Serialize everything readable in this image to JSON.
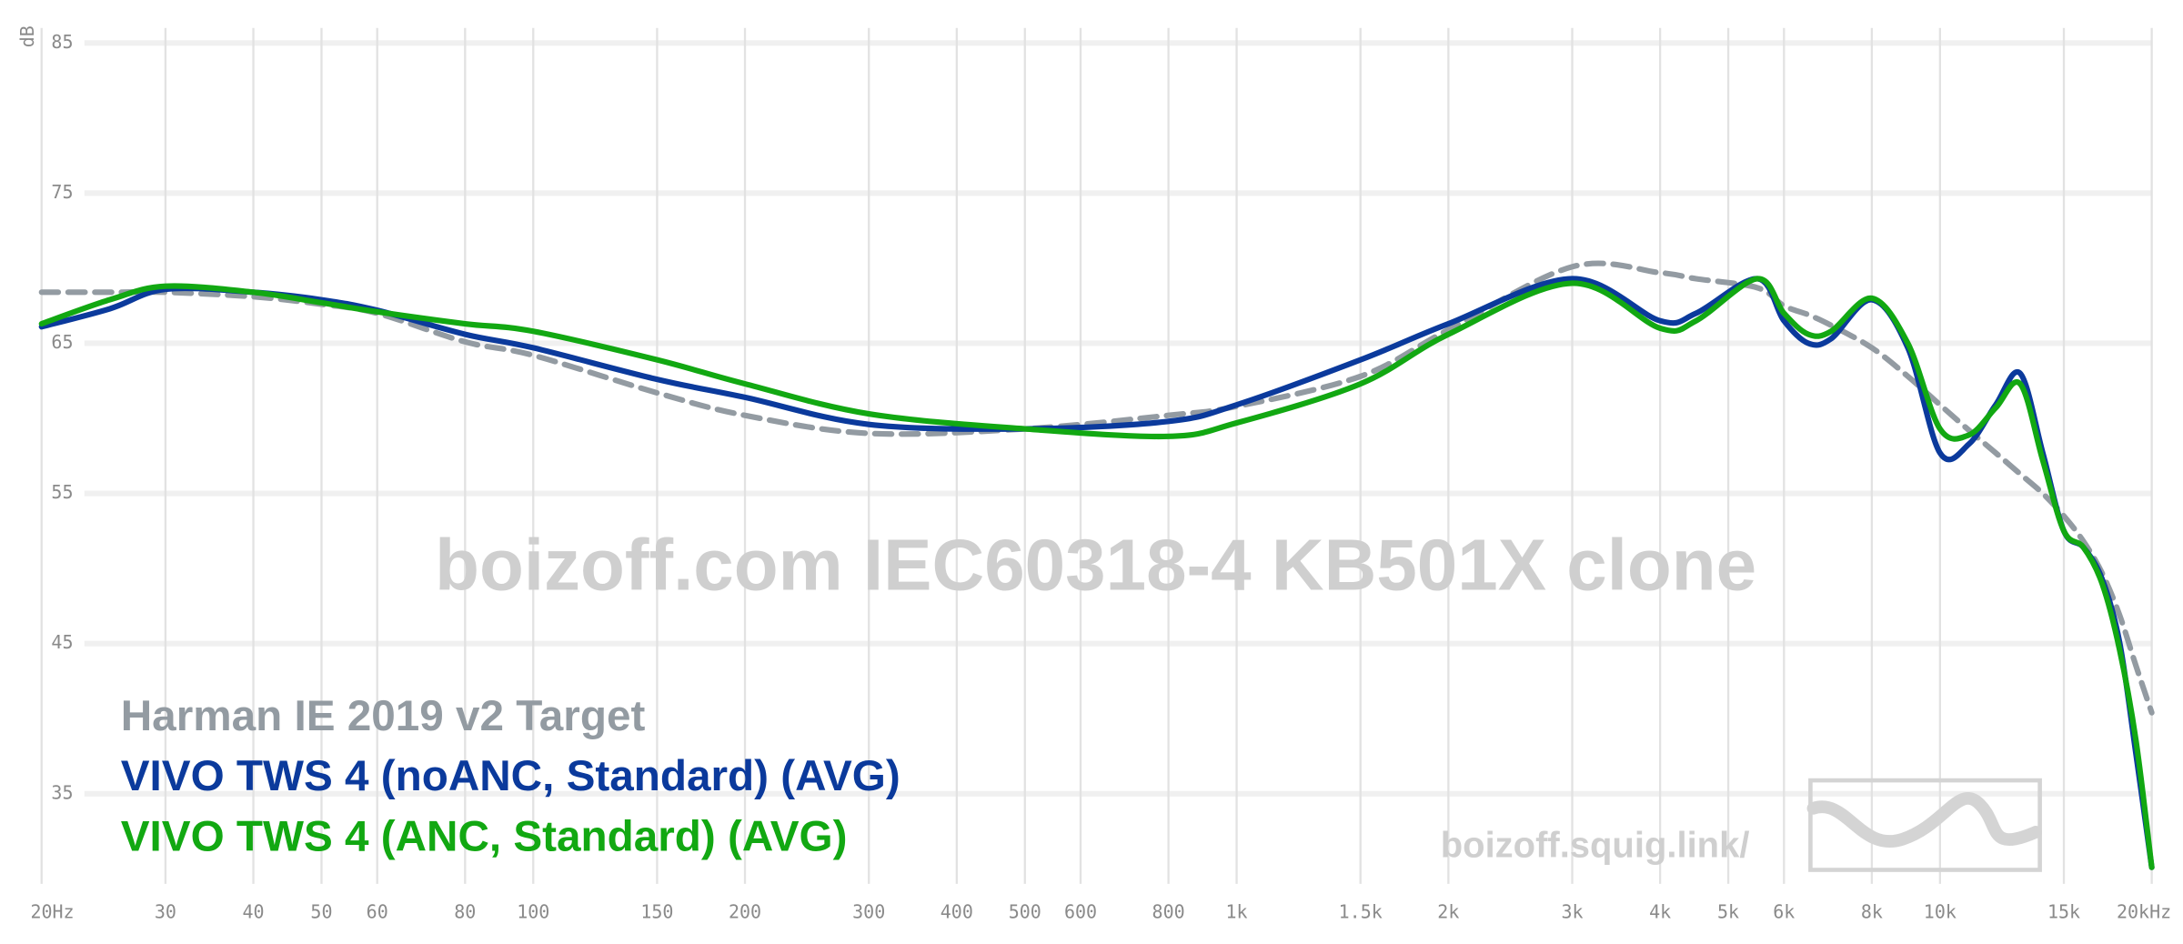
{
  "chart_data": {
    "type": "line",
    "title": "boizoff.com IEC60318-4 KB501X clone",
    "annotations": [
      "boizoff.squig.link/"
    ],
    "y_label": "dB",
    "x_scale": "log",
    "grid": true,
    "legend": "bottom-left",
    "xlim": [
      20,
      20000
    ],
    "ylim": [
      29,
      86
    ],
    "yticks": [
      35,
      45,
      55,
      65,
      75,
      85
    ],
    "xticks": [
      {
        "value": 20,
        "label": "20Hz"
      },
      30,
      40,
      50,
      60,
      80,
      100,
      150,
      200,
      300,
      400,
      500,
      600,
      800,
      {
        "value": 1000,
        "label": "1k"
      },
      {
        "value": 1500,
        "label": "1.5k"
      },
      {
        "value": 2000,
        "label": "2k"
      },
      {
        "value": 3000,
        "label": "3k"
      },
      {
        "value": 4000,
        "label": "4k"
      },
      {
        "value": 5000,
        "label": "5k"
      },
      {
        "value": 6000,
        "label": "6k"
      },
      {
        "value": 8000,
        "label": "8k"
      },
      {
        "value": 10000,
        "label": "10k"
      },
      {
        "value": 15000,
        "label": "15k"
      },
      {
        "value": 20000,
        "label": "20kHz"
      }
    ],
    "x": [
      20,
      25,
      30,
      40,
      50,
      60,
      80,
      100,
      150,
      200,
      300,
      500,
      800,
      1000,
      1500,
      2000,
      3000,
      4000,
      4500,
      5500,
      6000,
      6500,
      7000,
      8000,
      9000,
      10000,
      11000,
      12000,
      13000,
      14000,
      15000,
      16000,
      17000,
      18000,
      19000,
      20000
    ],
    "series": [
      {
        "name": "Harman IE 2019 v2 Target",
        "color": "#939ba2",
        "dash": true,
        "values": [
          68.4,
          68.4,
          68.4,
          68.1,
          67.6,
          67.0,
          65.1,
          64.2,
          61.7,
          60.2,
          59.0,
          59.3,
          60.2,
          60.8,
          62.8,
          65.9,
          70.1,
          69.7,
          69.3,
          68.7,
          67.5,
          66.9,
          66.2,
          64.7,
          62.8,
          60.9,
          59.2,
          57.7,
          56.3,
          55.0,
          53.5,
          51.8,
          49.7,
          46.9,
          43.5,
          40.4
        ]
      },
      {
        "name": "VIVO TWS 4 (noANC, Standard) (AVG)",
        "color": "#0b3a9c",
        "values": [
          66.1,
          67.3,
          68.6,
          68.4,
          67.9,
          67.2,
          65.6,
          64.7,
          62.6,
          61.4,
          59.6,
          59.3,
          59.8,
          60.9,
          63.9,
          66.3,
          69.3,
          66.5,
          67.0,
          69.3,
          66.5,
          65.0,
          65.3,
          67.9,
          64.7,
          57.7,
          58.3,
          60.9,
          63.0,
          57.7,
          52.5,
          51.4,
          49.3,
          45.1,
          37.6,
          30.1
        ]
      },
      {
        "name": "VIVO TWS 4 (ANC, Standard) (AVG)",
        "color": "#12a812",
        "values": [
          66.3,
          67.9,
          68.8,
          68.4,
          67.7,
          67.1,
          66.3,
          65.8,
          63.9,
          62.3,
          60.3,
          59.3,
          58.8,
          59.7,
          62.3,
          65.6,
          69.0,
          66.0,
          66.5,
          69.3,
          67.0,
          65.6,
          65.8,
          68.0,
          65.0,
          59.3,
          58.9,
          60.7,
          62.3,
          57.2,
          52.5,
          51.4,
          49.0,
          44.6,
          38.5,
          30.1
        ]
      }
    ]
  }
}
